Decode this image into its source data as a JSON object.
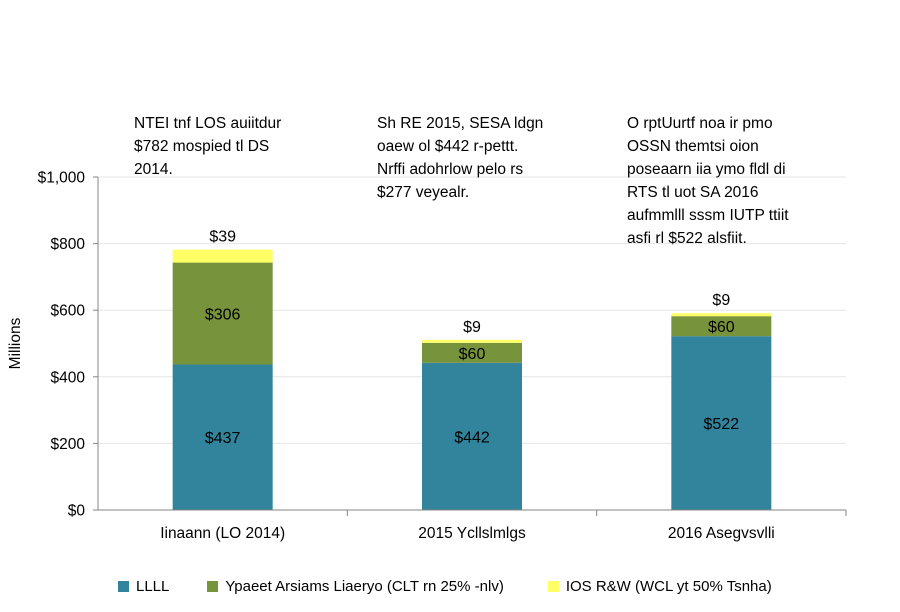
{
  "chart_data": {
    "type": "bar",
    "stacked": true,
    "ylabel": "Millions",
    "ylim": [
      0,
      1000
    ],
    "yticks": [
      0,
      200,
      400,
      600,
      800,
      1000
    ],
    "ytick_labels": [
      "$0",
      "$200",
      "$400",
      "$600",
      "$800",
      "$1,000"
    ],
    "categories": [
      "Iinaann (LO 2014)",
      "2015 Ycllslmlgs",
      "2016 Asegvsvlli"
    ],
    "series": [
      {
        "name": "LLLL",
        "color": "#31849B",
        "values": [
          437,
          442,
          522
        ],
        "labels": [
          "$437",
          "$442",
          "$522"
        ]
      },
      {
        "name": "Ypaeet Arsiams Liaeryo (CLT rn 25% -nlv)",
        "color": "#77933C",
        "values": [
          306,
          60,
          60
        ],
        "labels": [
          "$306",
          "$60",
          "$60"
        ]
      },
      {
        "name": "IOS R&W (WCL yt 50% Tsnha)",
        "color": "#FFFF66",
        "values": [
          39,
          9,
          9
        ],
        "labels": [
          "$39",
          "$9",
          "$9"
        ]
      }
    ],
    "annotations": [
      "NTEI tnf LOS auiitdur\n$782 mospied tl DS\n2014.",
      "Sh RE 2015, SESA ldgn\noaew ol $442 r-pettt.\nNrffi adohrlow pelo rs\n$277 veyealr.",
      "O rptUurtf noa ir pmo\nOSSN themtsi oion\nposeaarn iia ymo fldl di\nRTS tl uot SA 2016\naufmmlll sssm IUTP ttiit\nasfi rl $522 alsfiit."
    ],
    "grid": true,
    "legend": "bottom"
  }
}
